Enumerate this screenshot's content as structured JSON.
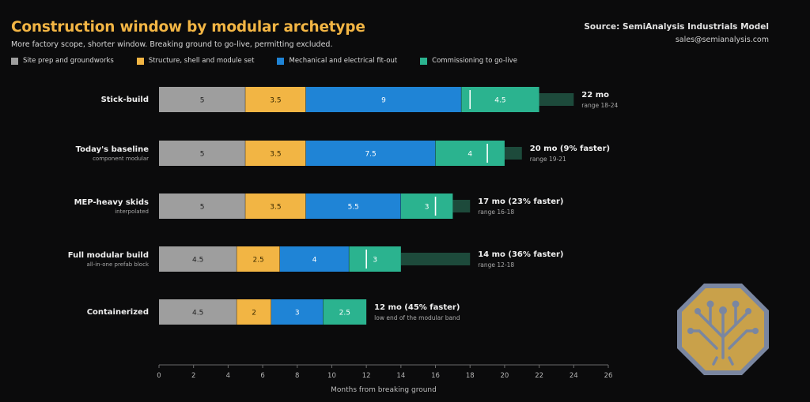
{
  "title": "Construction window by modular archetype",
  "subtitle": "More factory scope, shorter window. Breaking ground to go-live, permitting excluded.",
  "source": "Source: SemiAnalysis Industrials Model",
  "email": "sales@semianalysis.com",
  "legend": [
    {
      "label": "Site prep and groundworks",
      "color": "#9e9e9e"
    },
    {
      "label": "Structure, shell and module set",
      "color": "#f2b544"
    },
    {
      "label": "Mechanical and electrical fit-out",
      "color": "#1f84d6"
    },
    {
      "label": "Commissioning to go-live",
      "color": "#2bb38f"
    }
  ],
  "xlabel": "Months from breaking ground",
  "chart_data": {
    "type": "bar",
    "orientation": "horizontal",
    "stacked": true,
    "title": "Construction window by modular archetype",
    "xlabel": "Months from breaking ground",
    "xlim": [
      0,
      26
    ],
    "xticks": [
      0,
      2,
      4,
      6,
      8,
      10,
      12,
      14,
      16,
      18,
      20,
      22,
      24,
      26
    ],
    "series_names": [
      "Site prep and groundworks",
      "Structure, shell and module set",
      "Mechanical and electrical fit-out",
      "Commissioning to go-live"
    ],
    "range_color": "#1d4a3b",
    "categories": [
      {
        "name": "Stick-build",
        "sub": "",
        "values": [
          5,
          3.5,
          9,
          4.5
        ],
        "total_label": "22 mo",
        "range_label": "range 18-24",
        "range": [
          18,
          24
        ]
      },
      {
        "name": "Today's baseline",
        "sub": "component modular",
        "values": [
          5,
          3.5,
          7.5,
          4
        ],
        "total_label": "20 mo (9% faster)",
        "range_label": "range 19-21",
        "range": [
          19,
          21
        ]
      },
      {
        "name": "MEP-heavy skids",
        "sub": "interpolated",
        "values": [
          5,
          3.5,
          5.5,
          3
        ],
        "total_label": "17 mo (23% faster)",
        "range_label": "range 16-18",
        "range": [
          16,
          18
        ]
      },
      {
        "name": "Full modular build",
        "sub": "all-in-one prefab block",
        "values": [
          4.5,
          2.5,
          4,
          3
        ],
        "total_label": "14 mo (36% faster)",
        "range_label": "range 12-18",
        "range": [
          12,
          18
        ]
      },
      {
        "name": "Containerized",
        "sub": "",
        "values": [
          4.5,
          2,
          3,
          2.5
        ],
        "total_label": "12 mo (45% faster)",
        "range_label": "low end of the modular band",
        "range": null
      }
    ]
  }
}
